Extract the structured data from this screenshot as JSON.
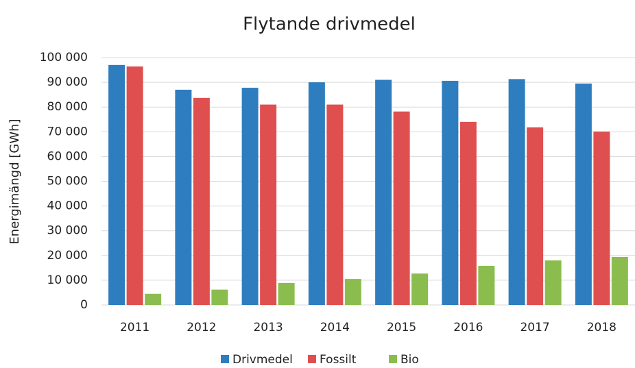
{
  "chart_data": {
    "type": "bar",
    "title": "Flytande drivmedel",
    "y_label": "Energimängd [GWh]",
    "categories": [
      "2011",
      "2012",
      "2013",
      "2014",
      "2015",
      "2016",
      "2017",
      "2018"
    ],
    "series": [
      {
        "name": "Drivmedel",
        "color": "#2e7dbf",
        "values": [
          97000,
          87000,
          87800,
          90000,
          91000,
          90600,
          91300,
          89500
        ]
      },
      {
        "name": "Fossilt",
        "color": "#e04f4f",
        "values": [
          96400,
          83700,
          81000,
          81000,
          78200,
          74000,
          71800,
          70100
        ]
      },
      {
        "name": "Bio",
        "color": "#8bbd4e",
        "values": [
          4500,
          6200,
          8900,
          10500,
          12700,
          15800,
          18000,
          19400
        ]
      }
    ],
    "ylim": [
      0,
      100000
    ],
    "yticks": [
      0,
      {
        "value": 10000,
        "label": "10 000"
      },
      {
        "value": 20000,
        "label": "20 000"
      },
      {
        "value": 30000,
        "label": "30 000"
      },
      {
        "value": 40000,
        "label": "40 000"
      },
      {
        "value": 50000,
        "label": "50 000"
      },
      {
        "value": 60000,
        "label": "60 000"
      },
      {
        "value": 70000,
        "label": "70 000"
      },
      {
        "value": 80000,
        "label": "80 000"
      },
      {
        "value": 90000,
        "label": "90 000"
      },
      {
        "value": 100000,
        "label": "100 000"
      }
    ],
    "grid": true,
    "legend": "bottom"
  }
}
